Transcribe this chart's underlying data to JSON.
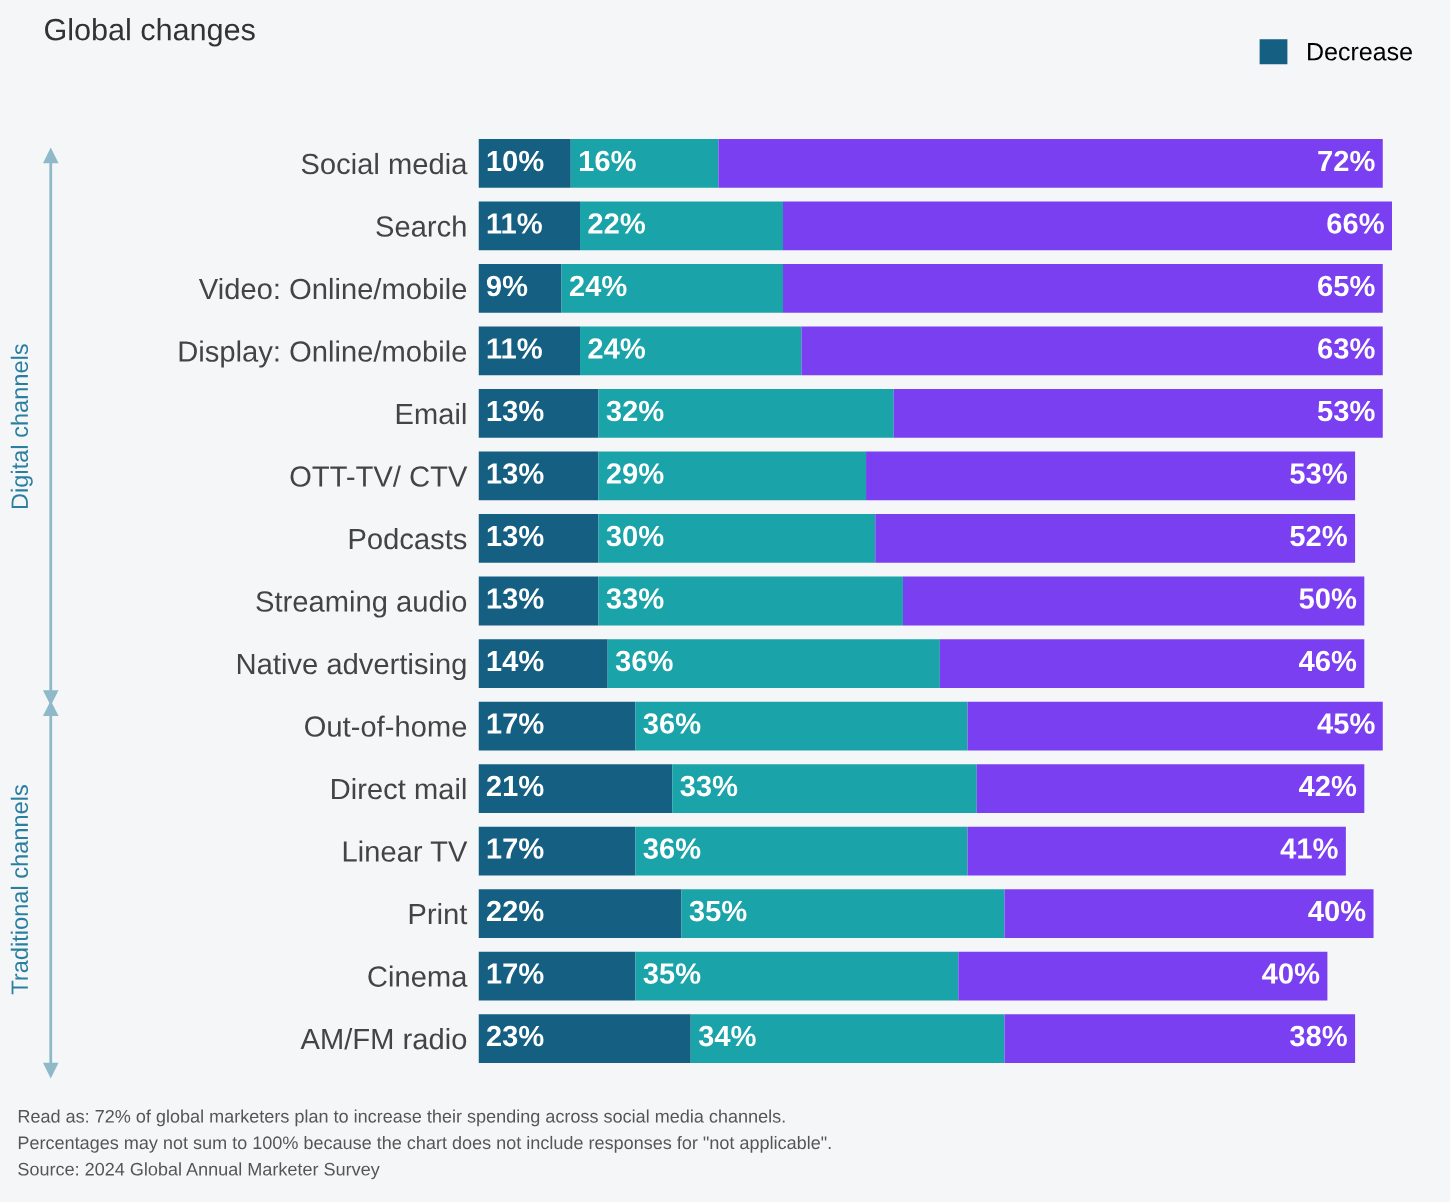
{
  "chart_data": {
    "type": "bar",
    "orientation": "horizontal",
    "stacked": true,
    "title": "Global changes",
    "categories": [
      "Social media",
      "Search",
      "Video: Online/mobile",
      "Display: Online/mobile",
      "Email",
      "OTT-TV/ CTV",
      "Podcasts",
      "Streaming audio",
      "Native advertising",
      "Out-of-home",
      "Direct mail",
      "Linear TV",
      "Print",
      "Cinema",
      "AM/FM radio"
    ],
    "series": [
      {
        "name": "Decrease",
        "color": "#155f82",
        "values": [
          10,
          11,
          9,
          11,
          13,
          13,
          13,
          13,
          14,
          17,
          21,
          17,
          22,
          17,
          23
        ],
        "value_labels": [
          "10%",
          "11%",
          "9%",
          "11%",
          "13%",
          "13%",
          "13%",
          "13%",
          "14%",
          "17%",
          "21%",
          "17%",
          "22%",
          "17%",
          "23%"
        ]
      },
      {
        "color": "#1aa3a8",
        "values": [
          16,
          22,
          24,
          24,
          32,
          29,
          30,
          33,
          36,
          36,
          33,
          36,
          35,
          35,
          34
        ],
        "value_labels": [
          "16%",
          "22%",
          "24%",
          "24%",
          "32%",
          "29%",
          "30%",
          "33%",
          "36%",
          "36%",
          "33%",
          "36%",
          "35%",
          "35%",
          "34%"
        ]
      },
      {
        "color": "#7b3ff2",
        "values": [
          72,
          66,
          65,
          63,
          53,
          53,
          52,
          50,
          46,
          45,
          42,
          41,
          40,
          40,
          38
        ],
        "value_labels": [
          "72%",
          "66%",
          "65%",
          "63%",
          "53%",
          "53%",
          "52%",
          "50%",
          "46%",
          "45%",
          "42%",
          "41%",
          "40%",
          "40%",
          "38%"
        ]
      }
    ],
    "legend": "top right",
    "annotations": [
      "Digital channels",
      "Traditional channels",
      "Read as: 72% of global marketers plan to increase their spending across social media channels.",
      "Percentages may not sum to 100% because the chart does not include responses for \"not applicable\".",
      "Source: 2024 Global Annual Marketer Survey"
    ]
  }
}
